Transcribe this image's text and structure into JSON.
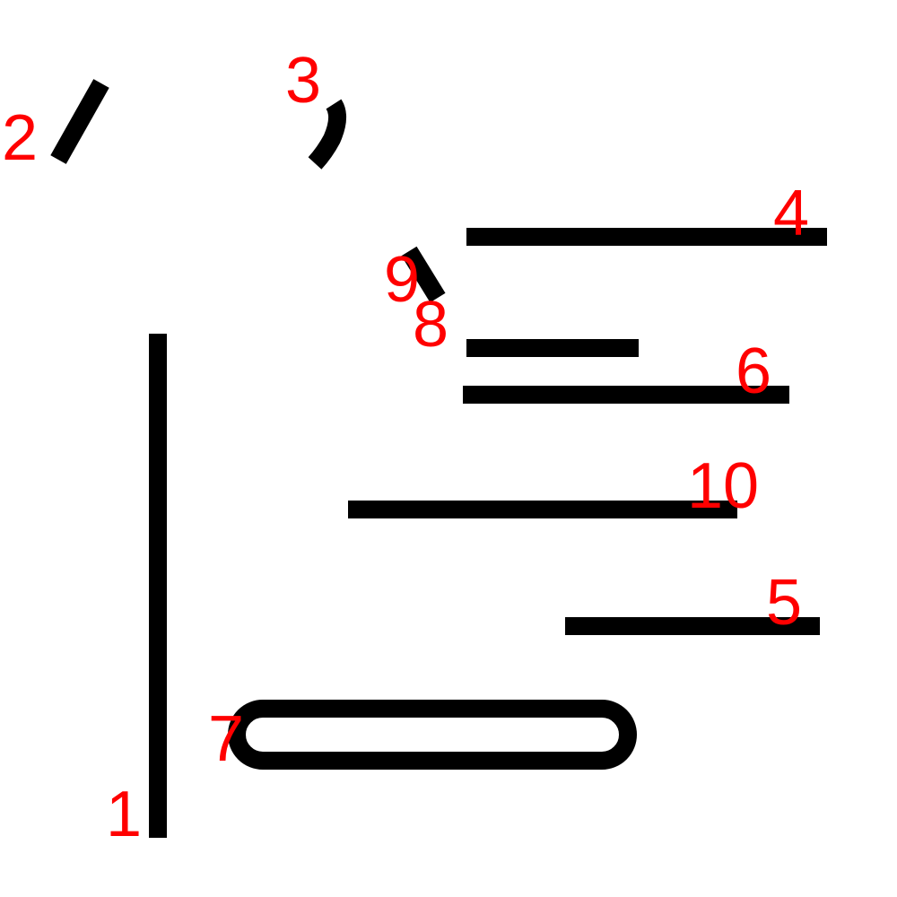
{
  "colors": {
    "stroke": "#000000",
    "label": "#ff0000",
    "background": "#ffffff"
  },
  "strokes": [
    {
      "label": "1",
      "shape": "vertical-line"
    },
    {
      "label": "2",
      "shape": "short-diagonal"
    },
    {
      "label": "3",
      "shape": "short-curve"
    },
    {
      "label": "4",
      "shape": "horizontal-line"
    },
    {
      "label": "5",
      "shape": "horizontal-line"
    },
    {
      "label": "6",
      "shape": "horizontal-line"
    },
    {
      "label": "7",
      "shape": "rounded-rectangle"
    },
    {
      "label": "8",
      "shape": "horizontal-line"
    },
    {
      "label": "9",
      "shape": "short-diagonal"
    },
    {
      "label": "10",
      "shape": "horizontal-line"
    }
  ]
}
